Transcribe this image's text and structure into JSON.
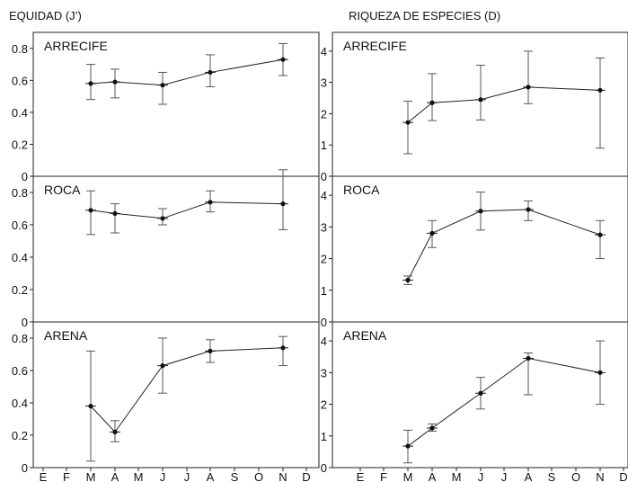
{
  "columns": [
    {
      "title": "EQUIDAD (J’)"
    },
    {
      "title": "RIQUEZA DE ESPECIES (D)"
    }
  ],
  "x_tick_labels": [
    "E",
    "F",
    "M",
    "A",
    "M",
    "J",
    "J",
    "A",
    "S",
    "O",
    "N",
    "D"
  ],
  "chart_data": [
    {
      "type": "line",
      "title": "EQUIDAD (J’)",
      "panel": "ARRECIFE",
      "x": [
        "M",
        "A",
        "J",
        "A",
        "N"
      ],
      "x_index": [
        2,
        3,
        5,
        7,
        10
      ],
      "y": [
        0.58,
        0.59,
        0.57,
        0.65,
        0.73
      ],
      "err_low": [
        0.48,
        0.49,
        0.45,
        0.56,
        0.63
      ],
      "err_high": [
        0.7,
        0.67,
        0.65,
        0.76,
        0.83
      ],
      "ylim": [
        0,
        0.9
      ],
      "yticks": [
        0,
        0.2,
        0.4,
        0.6,
        0.8
      ],
      "ytick_labels": [
        "0",
        "0.2",
        "0.4",
        "0.6",
        "0.8"
      ]
    },
    {
      "type": "line",
      "title": "EQUIDAD (J’)",
      "panel": "ROCA",
      "x": [
        "M",
        "A",
        "J",
        "A",
        "N"
      ],
      "x_index": [
        2,
        3,
        5,
        7,
        10
      ],
      "y": [
        0.69,
        0.67,
        0.64,
        0.74,
        0.73
      ],
      "err_low": [
        0.54,
        0.55,
        0.6,
        0.68,
        0.57
      ],
      "err_high": [
        0.81,
        0.73,
        0.7,
        0.81,
        0.94
      ],
      "ylim": [
        0,
        0.9
      ],
      "yticks": [
        0,
        0.2,
        0.4,
        0.6,
        0.8
      ],
      "ytick_labels": [
        "0",
        "0.2",
        "0.4",
        "0.6",
        "0.8"
      ]
    },
    {
      "type": "line",
      "title": "EQUIDAD (J’)",
      "panel": "ARENA",
      "x": [
        "M",
        "A",
        "J",
        "A",
        "N"
      ],
      "x_index": [
        2,
        3,
        5,
        7,
        10
      ],
      "y": [
        0.38,
        0.22,
        0.63,
        0.72,
        0.74
      ],
      "err_low": [
        0.04,
        0.16,
        0.46,
        0.65,
        0.63
      ],
      "err_high": [
        0.72,
        0.29,
        0.8,
        0.79,
        0.81
      ],
      "ylim": [
        0,
        0.9
      ],
      "yticks": [
        0,
        0.2,
        0.4,
        0.6,
        0.8
      ],
      "ytick_labels": [
        "0",
        "0.2",
        "0.4",
        "0.6",
        "0.8"
      ],
      "xtick_labels": [
        "E",
        "F",
        "M",
        "A",
        "M",
        "J",
        "J",
        "A",
        "S",
        "O",
        "N",
        "D"
      ]
    },
    {
      "type": "line",
      "title": "RIQUEZA DE ESPECIES (D)",
      "panel": "ARRECIFE",
      "x": [
        "M",
        "A",
        "J",
        "A",
        "N"
      ],
      "x_index": [
        2,
        3,
        5,
        7,
        10
      ],
      "y": [
        1.72,
        2.35,
        2.45,
        2.85,
        2.75
      ],
      "err_low": [
        0.72,
        1.78,
        1.8,
        2.32,
        0.9
      ],
      "err_high": [
        2.4,
        3.28,
        3.55,
        4.0,
        3.78
      ],
      "ylim": [
        0,
        4.6
      ],
      "yticks": [
        0,
        1,
        2,
        3,
        4
      ],
      "ytick_labels": [
        "0",
        "1",
        "2",
        "3",
        "4"
      ]
    },
    {
      "type": "line",
      "title": "RIQUEZA DE ESPECIES (D)",
      "panel": "ROCA",
      "x": [
        "M",
        "A",
        "J",
        "A",
        "N"
      ],
      "x_index": [
        2,
        3,
        5,
        7,
        10
      ],
      "y": [
        1.32,
        2.8,
        3.5,
        3.55,
        2.75
      ],
      "err_low": [
        1.18,
        2.35,
        2.9,
        3.2,
        2.0
      ],
      "err_high": [
        1.45,
        3.2,
        4.1,
        3.82,
        3.2
      ],
      "ylim": [
        0,
        4.6
      ],
      "yticks": [
        0,
        1,
        2,
        3,
        4
      ],
      "ytick_labels": [
        "0",
        "1",
        "2",
        "3",
        "4"
      ]
    },
    {
      "type": "line",
      "title": "RIQUEZA DE ESPECIES (D)",
      "panel": "ARENA",
      "x": [
        "M",
        "A",
        "J",
        "A",
        "N"
      ],
      "x_index": [
        2,
        3,
        5,
        7,
        10
      ],
      "y": [
        0.68,
        1.25,
        2.35,
        3.45,
        3.0
      ],
      "err_low": [
        0.15,
        1.15,
        1.85,
        2.3,
        2.0
      ],
      "err_high": [
        1.18,
        1.38,
        2.85,
        3.62,
        4.0
      ],
      "ylim": [
        0,
        4.6
      ],
      "yticks": [
        0,
        1,
        2,
        3,
        4
      ],
      "ytick_labels": [
        "0",
        "1",
        "2",
        "3",
        "4"
      ],
      "xtick_labels": [
        "E",
        "F",
        "M",
        "A",
        "M",
        "J",
        "J",
        "A",
        "S",
        "O",
        "N",
        "D"
      ]
    }
  ]
}
